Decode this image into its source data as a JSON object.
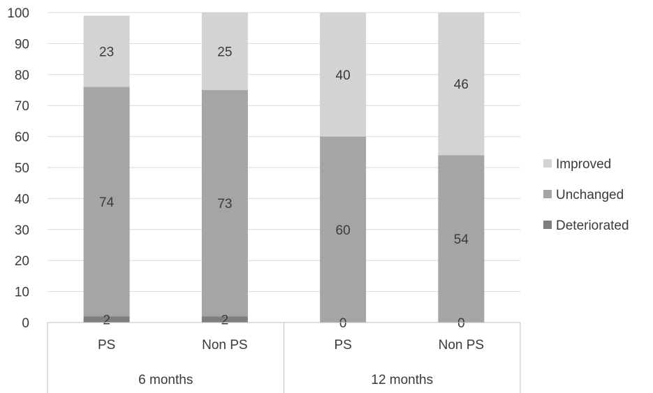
{
  "chart_data": {
    "type": "bar",
    "stacked": true,
    "title": "",
    "xlabel": "",
    "ylabel": "",
    "ylim": [
      0,
      100
    ],
    "yticks": [
      0,
      10,
      20,
      30,
      40,
      50,
      60,
      70,
      80,
      90,
      100
    ],
    "grid": true,
    "legend": "right",
    "categories": [
      "PS",
      "Non PS",
      "PS",
      "Non PS"
    ],
    "groups": [
      {
        "label": "6 months",
        "span": [
          0,
          1
        ]
      },
      {
        "label": "12 months",
        "span": [
          2,
          3
        ]
      }
    ],
    "series": [
      {
        "name": "Deteriorated",
        "color": "#7f7f7f",
        "values": [
          2,
          2,
          0,
          0
        ]
      },
      {
        "name": "Unchanged",
        "color": "#a5a5a5",
        "values": [
          74,
          73,
          60,
          54
        ]
      },
      {
        "name": "Improved",
        "color": "#d3d3d3",
        "values": [
          23,
          25,
          40,
          46
        ]
      }
    ],
    "legend_order": [
      "Improved",
      "Unchanged",
      "Deteriorated"
    ],
    "grid_color": "#d9d9d9",
    "axis_color": "#bfbfbf"
  }
}
